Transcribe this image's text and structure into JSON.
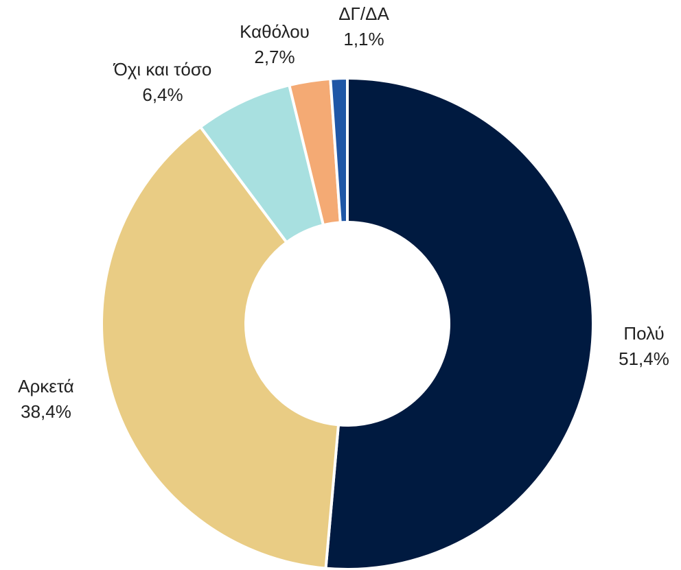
{
  "chart_data": {
    "type": "donut",
    "categories": [
      "Πολύ",
      "Αρκετά",
      "Όχι και τόσο",
      "Καθόλου",
      "ΔΓ/ΔΑ"
    ],
    "values": [
      51.4,
      38.4,
      6.4,
      2.7,
      1.1
    ],
    "value_labels": [
      "51,4%",
      "38,4%",
      "6,4%",
      "2,7%",
      "1,1%"
    ],
    "colors": [
      "#001a40",
      "#e9cc84",
      "#a8e0e0",
      "#f4aa74",
      "#1f56a6"
    ]
  }
}
